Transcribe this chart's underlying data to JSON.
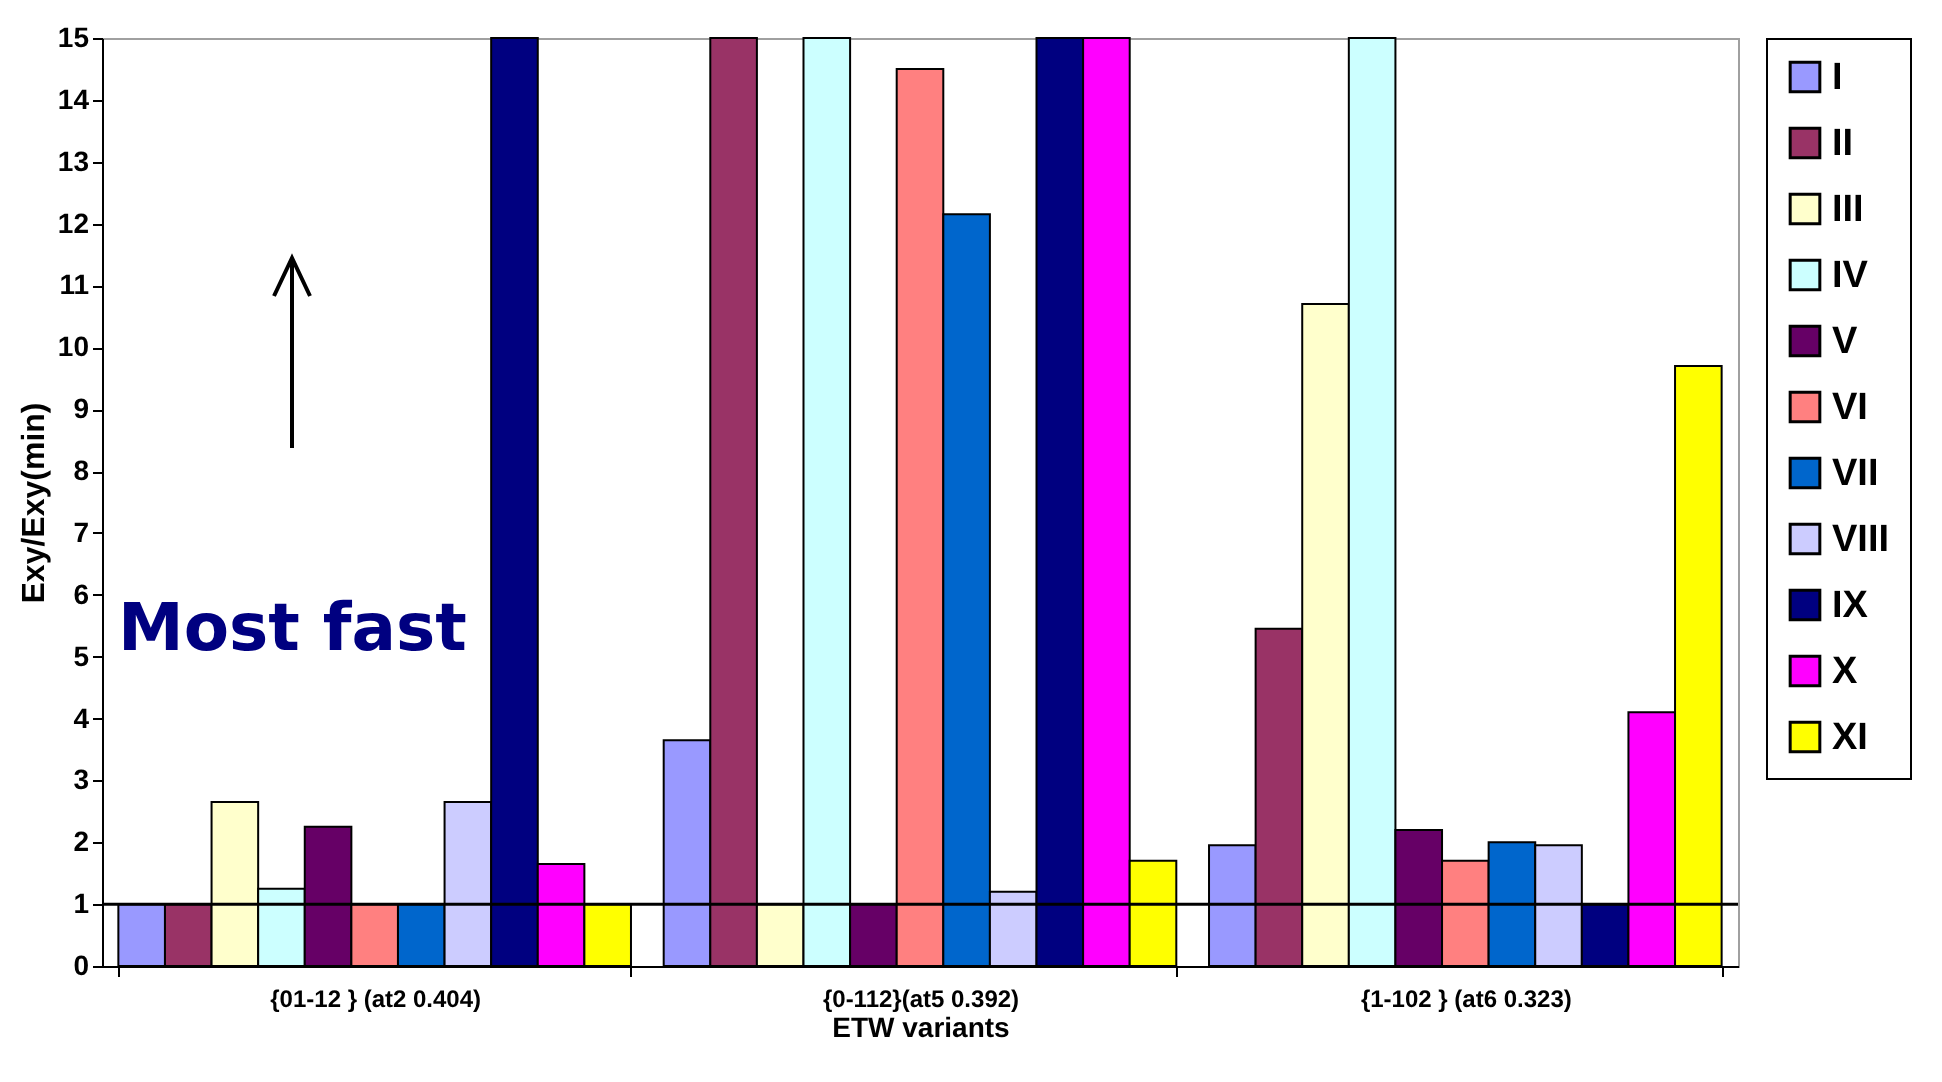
{
  "chart_data": {
    "type": "bar",
    "xlabel": "ETW variants",
    "ylabel": "Exy/Exy(min)",
    "categories": [
      "{01-12 } (at2 0.404)",
      "{0-112}(at5 0.392)",
      "{1-102 } (at6 0.323)"
    ],
    "series": [
      {
        "name": "I",
        "color": "#9999ff",
        "values": [
          1,
          3.65,
          1.95
        ]
      },
      {
        "name": "II",
        "color": "#993366",
        "values": [
          1,
          15,
          5.45
        ]
      },
      {
        "name": "III",
        "color": "#ffffcc",
        "values": [
          2.65,
          1,
          10.7
        ]
      },
      {
        "name": "IV",
        "color": "#ccffff",
        "values": [
          1.25,
          15,
          15
        ]
      },
      {
        "name": "V",
        "color": "#660066",
        "values": [
          2.25,
          1,
          2.2
        ]
      },
      {
        "name": "VI",
        "color": "#ff8080",
        "values": [
          1,
          14.5,
          1.7
        ]
      },
      {
        "name": "VII",
        "color": "#0066cc",
        "values": [
          1,
          12.15,
          2.0
        ]
      },
      {
        "name": "VIII",
        "color": "#ccccff",
        "values": [
          2.65,
          1.2,
          1.95
        ]
      },
      {
        "name": "IX",
        "color": "#000080",
        "values": [
          15,
          15,
          1
        ]
      },
      {
        "name": "X",
        "color": "#ff00ff",
        "values": [
          1.65,
          15,
          4.1
        ]
      },
      {
        "name": "XI",
        "color": "#ffff00",
        "values": [
          1,
          1.7,
          9.7
        ]
      }
    ],
    "ylim": [
      0,
      15
    ],
    "yticks": [
      0,
      1,
      2,
      3,
      4,
      5,
      6,
      7,
      8,
      9,
      10,
      11,
      12,
      13,
      14,
      15
    ],
    "ref_lines": [
      {
        "axis": "y",
        "value": 1,
        "color": "#000000"
      }
    ],
    "annotations": [
      "Most fast"
    ],
    "legend": "right"
  }
}
